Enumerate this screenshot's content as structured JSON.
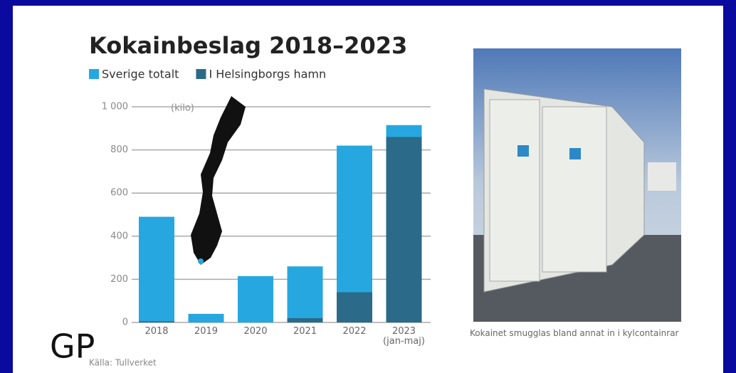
{
  "chart_data": {
    "type": "bar",
    "title": "Kokainbeslag 2018–2023",
    "y_label": "(kilo)",
    "categories": [
      "2018",
      "2019",
      "2020",
      "2021",
      "2022",
      "2023\n(jan-maj)"
    ],
    "series": [
      {
        "name": "Sverige totalt",
        "color": "#27a7df",
        "values": [
          490,
          40,
          215,
          260,
          820,
          915
        ]
      },
      {
        "name": "I Helsingborgs hamn",
        "color": "#2b6a88",
        "values": [
          5,
          0,
          0,
          20,
          140,
          860
        ]
      }
    ],
    "ylim": [
      0,
      1000
    ],
    "yticks": [
      0,
      200,
      400,
      600,
      800,
      {
        "value": 1000,
        "label": "1 000"
      }
    ],
    "grid": true
  },
  "source": "Källa: Tullverket",
  "caption": "Kokainet smugglas bland annat in i kylcontainrar",
  "logo": "GP"
}
